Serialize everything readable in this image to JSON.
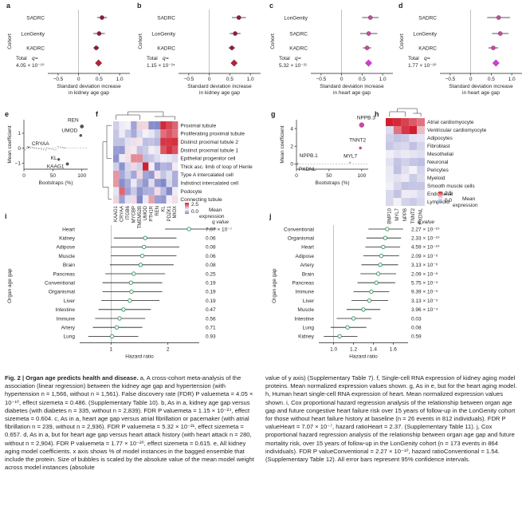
{
  "colors": {
    "diamond_purple": "#d63ad9",
    "diamond_red": "#b52437",
    "point_kidney": "#8e1b3e",
    "point_heart": "#c64b9e",
    "forest_green": "#3f9a6b",
    "heat_high": "#d21f2f",
    "heat_mid": "#f4f1f8",
    "heat_low": "#7f86c8"
  },
  "meta_panels": [
    {
      "letter": "a",
      "cohorts": [
        "SADRC",
        "LonGenity",
        "KADRC"
      ],
      "total_label": "Total",
      "q_text": "4.05 × 10⁻¹⁰",
      "xlabel_line1": "Standard deviation increase",
      "xlabel_line2": "in kidney age gap",
      "ticks": [
        "−0.5",
        "0",
        "0.5",
        "1.0"
      ],
      "xlim": [
        -0.75,
        1.25
      ],
      "points": [
        {
          "est": 0.57,
          "lo": 0.45,
          "hi": 0.69
        },
        {
          "est": 0.5,
          "lo": 0.36,
          "hi": 0.64
        },
        {
          "est": 0.43,
          "lo": 0.36,
          "hi": 0.5
        }
      ],
      "total": {
        "est": 0.486,
        "lo": 0.41,
        "hi": 0.56
      },
      "point_color": "#8e1b3e",
      "total_color": "#b52437"
    },
    {
      "letter": "b",
      "cohorts": [
        "SADRC",
        "LonGenity",
        "KADRC"
      ],
      "total_label": "Total",
      "q_text": "1.15 × 10⁻²⁴",
      "xlabel_line1": "Standard deviation increase",
      "xlabel_line2": "in kidney age gap",
      "ticks": [
        "−0.5",
        "0",
        "0.5",
        "1.0"
      ],
      "xlim": [
        -0.75,
        1.25
      ],
      "points": [
        {
          "est": 0.72,
          "lo": 0.55,
          "hi": 0.89
        },
        {
          "est": 0.63,
          "lo": 0.5,
          "hi": 0.76
        },
        {
          "est": 0.55,
          "lo": 0.47,
          "hi": 0.63
        }
      ],
      "total": {
        "est": 0.604,
        "lo": 0.54,
        "hi": 0.67
      },
      "point_color": "#8e1b3e",
      "total_color": "#b52437"
    },
    {
      "letter": "c",
      "cohorts": [
        "LonGenity",
        "SADRC",
        "KADRC"
      ],
      "total_label": "Total",
      "q_text": "5.32 × 10⁻²¹",
      "xlabel_line1": "Standard deviation increase",
      "xlabel_line2": "in heart age gap",
      "ticks": [
        "−0.5",
        "0",
        "0.5",
        "1.0"
      ],
      "xlim": [
        -0.75,
        1.25
      ],
      "points": [
        {
          "est": 0.7,
          "lo": 0.5,
          "hi": 0.9
        },
        {
          "est": 0.66,
          "lo": 0.45,
          "hi": 0.87
        },
        {
          "est": 0.62,
          "lo": 0.52,
          "hi": 0.72
        }
      ],
      "total": {
        "est": 0.657,
        "lo": 0.57,
        "hi": 0.74
      },
      "point_color": "#c64b9e",
      "total_color": "#d63ad9"
    },
    {
      "letter": "d",
      "cohorts": [
        "SADRC",
        "LonGenity",
        "KADRC"
      ],
      "total_label": "Total",
      "q_text": "1.77 × 10⁻²⁰",
      "xlabel_line1": "Standard deviation increase",
      "xlabel_line2": "in heart age gap",
      "ticks": [
        "−0.5",
        "0",
        "0.5",
        "1.0"
      ],
      "xlim": [
        -0.75,
        1.25
      ],
      "points": [
        {
          "est": 0.68,
          "lo": 0.4,
          "hi": 0.96
        },
        {
          "est": 0.72,
          "lo": 0.52,
          "hi": 0.92
        },
        {
          "est": 0.55,
          "lo": 0.43,
          "hi": 0.67
        }
      ],
      "total": {
        "est": 0.615,
        "lo": 0.52,
        "hi": 0.71
      },
      "point_color": "#c64b9e",
      "total_color": "#d63ad9"
    }
  ],
  "cohort_axis_label": "Cohort",
  "total_q_word": "q",
  "panel_e": {
    "letter": "e",
    "ylabel": "Mean coefficient",
    "xlabel": "Bootstraps (%)",
    "yticks": [
      "1",
      "0",
      "−1"
    ],
    "xticks": [
      "0",
      "50",
      "100"
    ],
    "labels": [
      "REN",
      "UMOD",
      "CRYAA",
      "KL",
      "KAAG1"
    ]
  },
  "panel_f": {
    "letter": "f",
    "rows": [
      "Proximal tubule",
      "Proliferating proximal tubule",
      "Distinct proximal tubule 2",
      "Distinct proximal tubule 1",
      "Epithelial progenitor cell",
      "Thick asc. limb of loop of Henle",
      "Type A intercalated cell",
      "Indistinct intercalated cell",
      "Podocyte",
      "Connecting tubule"
    ],
    "cols": [
      "KAAG1",
      "CRYAA",
      "ITGB6",
      "MYCBP",
      "TMEM52B",
      "UMOD",
      "PTH1R",
      "REN",
      "KL",
      "PDZK1",
      "MIOX"
    ],
    "legend_title": "Mean",
    "legend_title2": "expression",
    "legend_ticks": [
      "2.5",
      "0.0"
    ]
  },
  "panel_g": {
    "letter": "g",
    "ylabel": "Mean coefficient",
    "xlabel": "Bootstraps (%)",
    "yticks": [
      "4",
      "2",
      "0"
    ],
    "xticks": [
      "0",
      "50",
      "100"
    ],
    "labels": [
      "NPPB.3",
      "TNNT2",
      "MYL7",
      "NPPB.1",
      "PXDNL"
    ]
  },
  "panel_h": {
    "letter": "h",
    "rows": [
      "Atrial cardiomyocyte",
      "Ventricular cardiomyocyte",
      "Adipocytes",
      "Fibroblast",
      "Mesothelial",
      "Neuronal",
      "Pericytes",
      "Myeloid",
      "Smooth muscle cells",
      "Endothelial",
      "Lymphoid"
    ],
    "cols": [
      "BMP10",
      "MYL7",
      "NPPB",
      "TNNT2",
      "PXDNL"
    ],
    "legend_title": "Mean",
    "legend_title2": "expression",
    "legend_ticks": [
      "2.5",
      "0.0"
    ]
  },
  "panel_i": {
    "letter": "i",
    "ylabel": "Organ age gap",
    "xlabel": "Hazard ratio",
    "q_header": "q value",
    "xticks": [
      "1",
      "2"
    ],
    "xlim": [
      0.45,
      2.55
    ],
    "rows": [
      {
        "organ": "Heart",
        "hr": 2.37,
        "lo": 1.95,
        "hi": 2.85,
        "q": "7.07 × 10⁻⁷"
      },
      {
        "organ": "Kidney",
        "hr": 1.6,
        "lo": 1.05,
        "hi": 2.15,
        "q": "0.06"
      },
      {
        "organ": "Adipose",
        "hr": 1.58,
        "lo": 1.0,
        "hi": 2.2,
        "q": "0.08"
      },
      {
        "organ": "Muscle",
        "hr": 1.55,
        "lo": 1.0,
        "hi": 2.15,
        "q": "0.06"
      },
      {
        "organ": "Brain",
        "hr": 1.52,
        "lo": 0.98,
        "hi": 2.1,
        "q": "0.08"
      },
      {
        "organ": "Pancreas",
        "hr": 1.4,
        "lo": 0.9,
        "hi": 1.95,
        "q": "0.25"
      },
      {
        "organ": "Conventional",
        "hr": 1.35,
        "lo": 0.85,
        "hi": 1.9,
        "q": "0.19"
      },
      {
        "organ": "Organismal",
        "hr": 1.36,
        "lo": 0.85,
        "hi": 1.9,
        "q": "0.19"
      },
      {
        "organ": "Liver",
        "hr": 1.33,
        "lo": 0.83,
        "hi": 1.85,
        "q": "0.19"
      },
      {
        "organ": "Intestine",
        "hr": 1.22,
        "lo": 0.78,
        "hi": 1.7,
        "q": "0.47"
      },
      {
        "organ": "Immune",
        "hr": 1.15,
        "lo": 0.72,
        "hi": 1.6,
        "q": "0.56"
      },
      {
        "organ": "Artery",
        "hr": 1.1,
        "lo": 0.68,
        "hi": 1.55,
        "q": "0.71"
      },
      {
        "organ": "Lung",
        "hr": 1.02,
        "lo": 0.6,
        "hi": 1.48,
        "q": "0.93"
      }
    ]
  },
  "panel_j": {
    "letter": "j",
    "ylabel": "Organ age gap",
    "xlabel": "Hazard ratio",
    "q_header": "q value",
    "xticks": [
      "1.0",
      "1.2",
      "1.4",
      "1.6"
    ],
    "xlim": [
      0.85,
      1.75
    ],
    "rows": [
      {
        "organ": "Conventional",
        "hr": 1.54,
        "lo": 1.35,
        "hi": 1.7,
        "q": "2.27 × 10⁻¹⁰"
      },
      {
        "organ": "Organismal",
        "hr": 1.52,
        "lo": 1.33,
        "hi": 1.68,
        "q": "2.33 × 10⁻¹⁰"
      },
      {
        "organ": "Heart",
        "hr": 1.5,
        "lo": 1.32,
        "hi": 1.67,
        "q": "4.59 × 10⁻¹⁰"
      },
      {
        "organ": "Adipose",
        "hr": 1.48,
        "lo": 1.3,
        "hi": 1.66,
        "q": "2.09 × 10⁻⁶"
      },
      {
        "organ": "Artery",
        "hr": 1.47,
        "lo": 1.28,
        "hi": 1.65,
        "q": "3.13 × 10⁻⁶"
      },
      {
        "organ": "Brain",
        "hr": 1.45,
        "lo": 1.27,
        "hi": 1.63,
        "q": "2.09 × 10⁻⁶"
      },
      {
        "organ": "Pancreas",
        "hr": 1.43,
        "lo": 1.24,
        "hi": 1.62,
        "q": "5.75 × 10⁻⁵"
      },
      {
        "organ": "Immune",
        "hr": 1.38,
        "lo": 1.2,
        "hi": 1.56,
        "q": "9.39 × 10⁻⁵"
      },
      {
        "organ": "Liver",
        "hr": 1.36,
        "lo": 1.18,
        "hi": 1.55,
        "q": "3.13 × 10⁻⁵"
      },
      {
        "organ": "Muscle",
        "hr": 1.3,
        "lo": 1.13,
        "hi": 1.47,
        "q": "3.96 × 10⁻⁴"
      },
      {
        "organ": "Intestine",
        "hr": 1.2,
        "lo": 1.03,
        "hi": 1.38,
        "q": "0.03"
      },
      {
        "organ": "Lung",
        "hr": 1.14,
        "lo": 0.97,
        "hi": 1.33,
        "q": "0.08"
      },
      {
        "organ": "Kidney",
        "hr": 1.06,
        "lo": 0.9,
        "hi": 1.24,
        "q": "0.59"
      }
    ]
  },
  "chart_data": [
    {
      "type": "scatter",
      "panel": "a",
      "categories": [
        "SADRC",
        "LonGenity",
        "KADRC",
        "Total"
      ],
      "values": [
        0.57,
        0.5,
        0.43,
        0.486
      ],
      "xlabel": "Standard deviation increase in kidney age gap",
      "ylabel": "Cohort",
      "xlim": [
        -0.75,
        1.25
      ]
    },
    {
      "type": "scatter",
      "panel": "b",
      "categories": [
        "SADRC",
        "LonGenity",
        "KADRC",
        "Total"
      ],
      "values": [
        0.72,
        0.63,
        0.55,
        0.604
      ],
      "xlabel": "Standard deviation increase in kidney age gap",
      "ylabel": "Cohort",
      "xlim": [
        -0.75,
        1.25
      ]
    },
    {
      "type": "scatter",
      "panel": "c",
      "categories": [
        "LonGenity",
        "SADRC",
        "KADRC",
        "Total"
      ],
      "values": [
        0.7,
        0.66,
        0.62,
        0.657
      ],
      "xlabel": "Standard deviation increase in heart age gap",
      "ylabel": "Cohort",
      "xlim": [
        -0.75,
        1.25
      ]
    },
    {
      "type": "scatter",
      "panel": "d",
      "categories": [
        "SADRC",
        "LonGenity",
        "KADRC",
        "Total"
      ],
      "values": [
        0.68,
        0.72,
        0.55,
        0.615
      ],
      "xlabel": "Standard deviation increase in heart age gap",
      "ylabel": "Cohort",
      "xlim": [
        -0.75,
        1.25
      ]
    },
    {
      "type": "scatter",
      "panel": "e",
      "x": [
        100,
        98,
        8,
        60,
        75
      ],
      "y": [
        1.45,
        0.85,
        0.05,
        -0.75,
        -1.05
      ],
      "labels": [
        "REN",
        "UMOD",
        "CRYAA",
        "KL",
        "KAAG1"
      ],
      "xlabel": "Bootstraps (%)",
      "ylabel": "Mean coefficient"
    },
    {
      "type": "heatmap",
      "panel": "f",
      "xlabel": "",
      "ylabel": ""
    },
    {
      "type": "scatter",
      "panel": "g",
      "x": [
        100,
        98,
        82,
        2,
        1
      ],
      "y": [
        4.4,
        1.8,
        0.15,
        0.05,
        -0.05
      ],
      "labels": [
        "NPPB.3",
        "TNNT2",
        "MYL7",
        "NPPB.1",
        "PXDNL"
      ],
      "xlabel": "Bootstraps (%)",
      "ylabel": "Mean coefficient"
    },
    {
      "type": "heatmap",
      "panel": "h",
      "xlabel": "",
      "ylabel": ""
    },
    {
      "type": "scatter",
      "panel": "i",
      "categories": [
        "Heart",
        "Kidney",
        "Adipose",
        "Muscle",
        "Brain",
        "Pancreas",
        "Conventional",
        "Organismal",
        "Liver",
        "Intestine",
        "Immune",
        "Artery",
        "Lung"
      ],
      "values": [
        2.37,
        1.6,
        1.58,
        1.55,
        1.52,
        1.4,
        1.35,
        1.36,
        1.33,
        1.22,
        1.15,
        1.1,
        1.02
      ],
      "xlabel": "Hazard ratio",
      "ylabel": "Organ age gap"
    },
    {
      "type": "scatter",
      "panel": "j",
      "categories": [
        "Conventional",
        "Organismal",
        "Heart",
        "Adipose",
        "Artery",
        "Brain",
        "Pancreas",
        "Immune",
        "Liver",
        "Muscle",
        "Intestine",
        "Lung",
        "Kidney"
      ],
      "values": [
        1.54,
        1.52,
        1.5,
        1.48,
        1.47,
        1.45,
        1.43,
        1.38,
        1.36,
        1.3,
        1.2,
        1.14,
        1.06
      ],
      "xlabel": "Hazard ratio",
      "ylabel": "Organ age gap"
    }
  ],
  "caption": {
    "title": "Fig. 2 | Organ age predicts health and disease.",
    "left_body": "a, A cross-cohort meta-analysis of the association (linear regression) between the kidney age gap and hypertension (with hypertension n = 1,566, without n = 1,561). False discovery rate (FDR) P valuemeta = 4.05 × 10⁻¹⁰, effect sizemeta = 0.486. (Supplementary Table 10). b, As in a, kidney age gap versus diabetes (with diabetes n = 335, without n = 2,839). FDR P valuemeta = 1.15 × 10⁻²⁴, effect sizemeta = 0.604. c, As in a, heart age gap versus atrial fibrillation or pacemaker (with atrial fibrillation n = 239, without n = 2,936). FDR P valuemeta = 5.32 × 10⁻²¹, effect sizemeta = 0.657. d, As in a, but for heart age gap versus heart attack history (with heart attack n = 280, without n = 2,904). FDR P valuemeta = 1.77 × 10⁻²⁰, effect sizemeta = 0.615. e, All kidney aging model coefficients. x axis shows % of model instances in the bagged ensemble that include the protein. Size of bubbles is scaled by the absolute value of the mean model weight across model instances (absolute",
    "right_body": "value of y axis) (Supplementary Table 7). f, Single-cell RNA expression of kidney aging model proteins. Mean normalized expression values shown. g, As in e, but for the heart aging model. h, Human heart single-cell RNA expression of heart. Mean normalized expression values shown. i, Cox proportional hazard regression analysis of the relationship between organ age gap and future congestive heart failure risk over 15 years of follow-up in the LonGenity cohort for those without heart failure history at baseline (n = 26 events in 812 individuals). FDR P valueHeart = 7.07 × 10⁻⁷, hazard ratioHeart = 2.37. (Supplementary Table 11). j, Cox proportional hazard regression analysis of the relationship between organ age gap and future mortality risk, over 15 years of follow-up in the LonGenity cohort (n = 173 events in 864 individuals). FDR P valueConventional = 2.27 × 10⁻¹⁰, hazard ratioConventional = 1.54. (Supplementary Table 12). All error bars represent 95% confidence intervals."
  }
}
